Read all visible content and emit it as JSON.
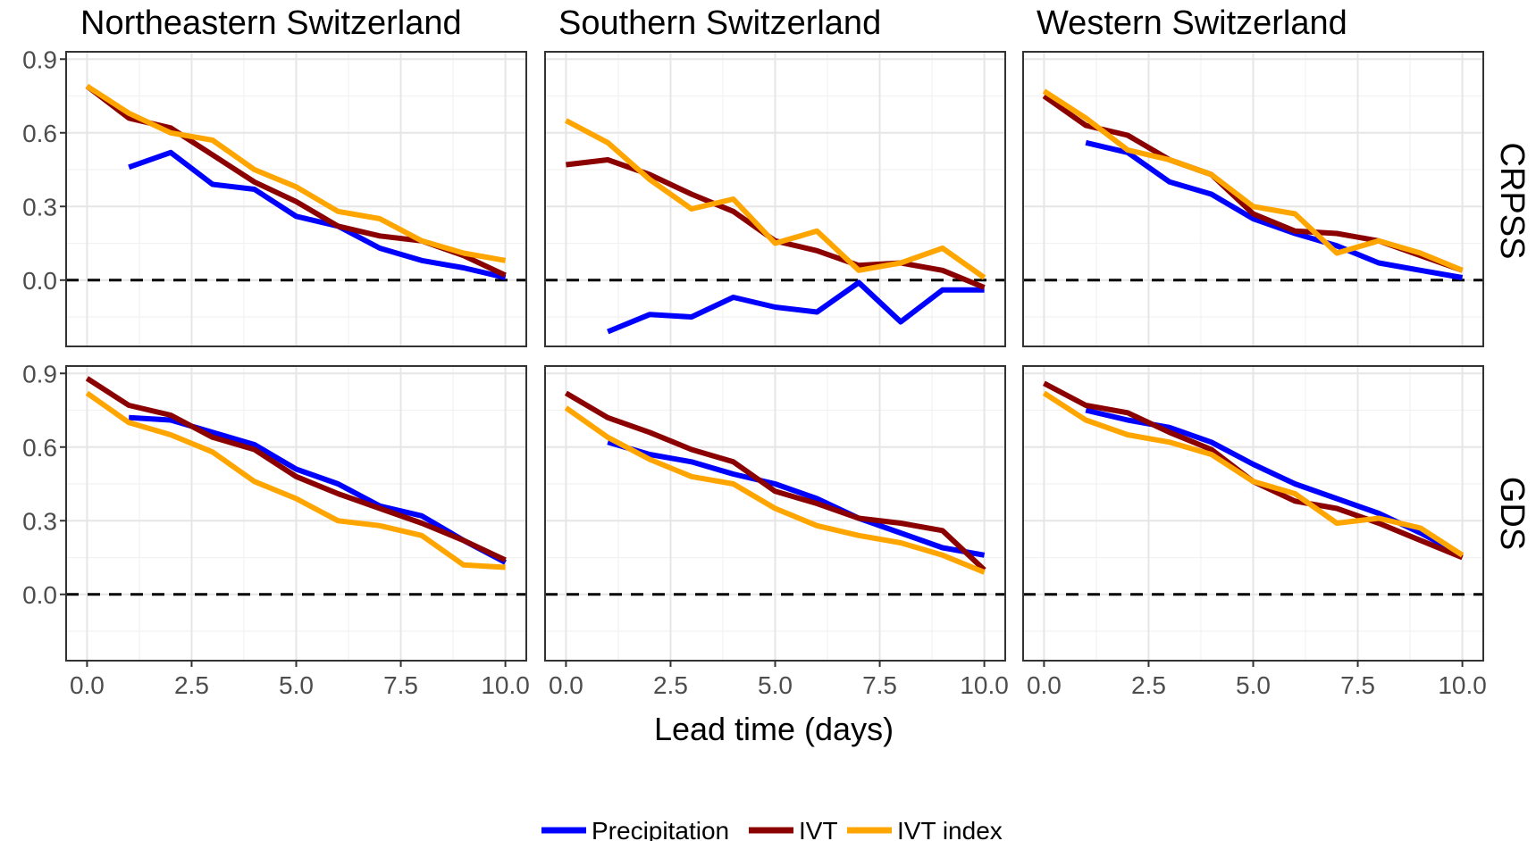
{
  "chart_data": {
    "type": "line",
    "layout": "facet-grid",
    "xlabel": "Lead time (days)",
    "ylabel": "",
    "xlim": [
      -0.5,
      10.5
    ],
    "ylim": [
      -0.27,
      0.93
    ],
    "xticks": [
      0,
      2.5,
      5,
      7.5,
      10
    ],
    "xtick_labels": [
      "0.0",
      "2.5",
      "5.0",
      "7.5",
      "10.0"
    ],
    "yticks": [
      0,
      0.3,
      0.6,
      0.9
    ],
    "ytick_labels": [
      "0.0",
      "0.3",
      "0.6",
      "0.9"
    ],
    "reference_line": 0,
    "grid": true,
    "columns": [
      "Northeastern Switzerland",
      "Southern Switzerland",
      "Western Switzerland"
    ],
    "rows": [
      "CRPSS",
      "GDS"
    ],
    "legend_position": "bottom",
    "series_styles": [
      {
        "name": "Precipitation",
        "color": "#0000ff"
      },
      {
        "name": "IVT",
        "color": "#8b0000"
      },
      {
        "name": "IVT index",
        "color": "#ffa500"
      }
    ],
    "panels": [
      {
        "row": "CRPSS",
        "column": "Northeastern Switzerland",
        "series": [
          {
            "name": "Precipitation",
            "x": [
              1,
              2,
              3,
              4,
              5,
              6,
              7,
              8,
              9,
              10
            ],
            "values": [
              0.46,
              0.52,
              0.39,
              0.37,
              0.26,
              0.22,
              0.13,
              0.08,
              0.05,
              0.01
            ]
          },
          {
            "name": "IVT",
            "x": [
              0,
              1,
              2,
              3,
              4,
              5,
              6,
              7,
              8,
              9,
              10
            ],
            "values": [
              0.79,
              0.66,
              0.62,
              0.51,
              0.4,
              0.32,
              0.22,
              0.18,
              0.16,
              0.1,
              0.02
            ]
          },
          {
            "name": "IVT index",
            "x": [
              0,
              1,
              2,
              3,
              4,
              5,
              6,
              7,
              8,
              9,
              10
            ],
            "values": [
              0.79,
              0.68,
              0.6,
              0.57,
              0.45,
              0.38,
              0.28,
              0.25,
              0.16,
              0.11,
              0.08
            ]
          }
        ]
      },
      {
        "row": "CRPSS",
        "column": "Southern Switzerland",
        "series": [
          {
            "name": "Precipitation",
            "x": [
              1,
              2,
              3,
              4,
              5,
              6,
              7,
              8,
              9,
              10
            ],
            "values": [
              -0.21,
              -0.14,
              -0.15,
              -0.07,
              -0.11,
              -0.13,
              -0.01,
              -0.17,
              -0.04,
              -0.04
            ]
          },
          {
            "name": "IVT",
            "x": [
              0,
              1,
              2,
              3,
              4,
              5,
              6,
              7,
              8,
              9,
              10
            ],
            "values": [
              0.47,
              0.49,
              0.43,
              0.35,
              0.28,
              0.16,
              0.12,
              0.06,
              0.07,
              0.04,
              -0.03
            ]
          },
          {
            "name": "IVT index",
            "x": [
              0,
              1,
              2,
              3,
              4,
              5,
              6,
              7,
              8,
              9,
              10
            ],
            "values": [
              0.65,
              0.56,
              0.41,
              0.29,
              0.33,
              0.15,
              0.2,
              0.04,
              0.07,
              0.13,
              0.01
            ]
          }
        ]
      },
      {
        "row": "CRPSS",
        "column": "Western Switzerland",
        "series": [
          {
            "name": "Precipitation",
            "x": [
              1,
              2,
              3,
              4,
              5,
              6,
              7,
              8,
              9,
              10
            ],
            "values": [
              0.56,
              0.52,
              0.4,
              0.35,
              0.25,
              0.19,
              0.14,
              0.07,
              0.04,
              0.01
            ]
          },
          {
            "name": "IVT",
            "x": [
              0,
              1,
              2,
              3,
              4,
              5,
              6,
              7,
              8,
              9,
              10
            ],
            "values": [
              0.75,
              0.63,
              0.59,
              0.49,
              0.43,
              0.27,
              0.2,
              0.19,
              0.16,
              0.1,
              0.04
            ]
          },
          {
            "name": "IVT index",
            "x": [
              0,
              1,
              2,
              3,
              4,
              5,
              6,
              7,
              8,
              9,
              10
            ],
            "values": [
              0.77,
              0.66,
              0.53,
              0.49,
              0.43,
              0.3,
              0.27,
              0.11,
              0.16,
              0.11,
              0.04
            ]
          }
        ]
      },
      {
        "row": "GDS",
        "column": "Northeastern Switzerland",
        "series": [
          {
            "name": "Precipitation",
            "x": [
              1,
              2,
              3,
              4,
              5,
              6,
              7,
              8,
              9,
              10
            ],
            "values": [
              0.72,
              0.71,
              0.66,
              0.61,
              0.51,
              0.45,
              0.36,
              0.32,
              0.22,
              0.13
            ]
          },
          {
            "name": "IVT",
            "x": [
              0,
              1,
              2,
              3,
              4,
              5,
              6,
              7,
              8,
              9,
              10
            ],
            "values": [
              0.88,
              0.77,
              0.73,
              0.64,
              0.59,
              0.48,
              0.41,
              0.35,
              0.29,
              0.22,
              0.14
            ]
          },
          {
            "name": "IVT index",
            "x": [
              0,
              1,
              2,
              3,
              4,
              5,
              6,
              7,
              8,
              9,
              10
            ],
            "values": [
              0.82,
              0.7,
              0.65,
              0.58,
              0.46,
              0.39,
              0.3,
              0.28,
              0.24,
              0.12,
              0.11
            ]
          }
        ]
      },
      {
        "row": "GDS",
        "column": "Southern Switzerland",
        "series": [
          {
            "name": "Precipitation",
            "x": [
              1,
              2,
              3,
              4,
              5,
              6,
              7,
              8,
              9,
              10
            ],
            "values": [
              0.62,
              0.57,
              0.54,
              0.49,
              0.45,
              0.39,
              0.31,
              0.25,
              0.19,
              0.16
            ]
          },
          {
            "name": "IVT",
            "x": [
              0,
              1,
              2,
              3,
              4,
              5,
              6,
              7,
              8,
              9,
              10
            ],
            "values": [
              0.82,
              0.72,
              0.66,
              0.59,
              0.54,
              0.42,
              0.37,
              0.31,
              0.29,
              0.26,
              0.1
            ]
          },
          {
            "name": "IVT index",
            "x": [
              0,
              1,
              2,
              3,
              4,
              5,
              6,
              7,
              8,
              9,
              10
            ],
            "values": [
              0.76,
              0.64,
              0.55,
              0.48,
              0.45,
              0.35,
              0.28,
              0.24,
              0.21,
              0.16,
              0.09
            ]
          }
        ]
      },
      {
        "row": "GDS",
        "column": "Western Switzerland",
        "series": [
          {
            "name": "Precipitation",
            "x": [
              1,
              2,
              3,
              4,
              5,
              6,
              7,
              8,
              9,
              10
            ],
            "values": [
              0.75,
              0.71,
              0.68,
              0.62,
              0.53,
              0.45,
              0.39,
              0.33,
              0.25,
              0.16
            ]
          },
          {
            "name": "IVT",
            "x": [
              0,
              1,
              2,
              3,
              4,
              5,
              6,
              7,
              8,
              9,
              10
            ],
            "values": [
              0.86,
              0.77,
              0.74,
              0.66,
              0.59,
              0.46,
              0.38,
              0.35,
              0.29,
              0.22,
              0.15
            ]
          },
          {
            "name": "IVT index",
            "x": [
              0,
              1,
              2,
              3,
              4,
              5,
              6,
              7,
              8,
              9,
              10
            ],
            "values": [
              0.82,
              0.71,
              0.65,
              0.62,
              0.57,
              0.46,
              0.41,
              0.29,
              0.31,
              0.27,
              0.16
            ]
          }
        ]
      }
    ]
  }
}
